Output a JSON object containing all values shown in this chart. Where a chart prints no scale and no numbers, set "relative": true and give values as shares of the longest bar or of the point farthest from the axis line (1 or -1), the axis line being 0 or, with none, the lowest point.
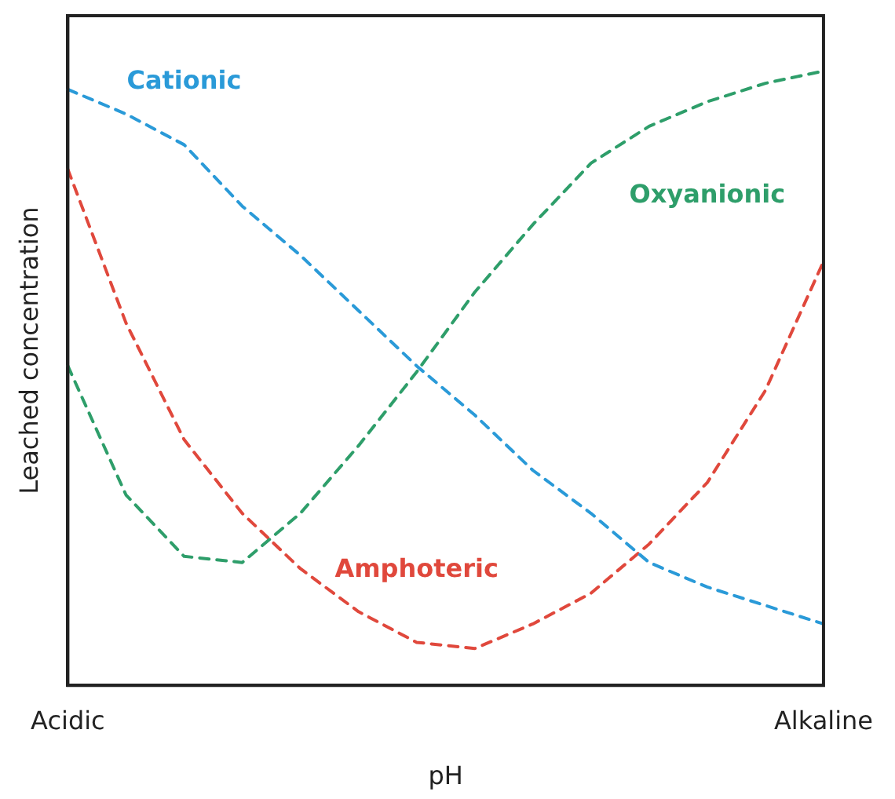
{
  "chart_data": {
    "type": "line",
    "relative": true,
    "xlabel": "pH",
    "ylabel": "Leached concentration",
    "categories": [
      "Acidic",
      null,
      null,
      null,
      null,
      null,
      null,
      null,
      null,
      null,
      null,
      null,
      null,
      "Alkaline"
    ],
    "series": [
      {
        "name": "Cationic",
        "color": "#2a9ad8",
        "values": [
          0.97,
          0.93,
          0.88,
          0.78,
          0.7,
          0.61,
          0.52,
          0.44,
          0.35,
          0.28,
          0.2,
          0.16,
          0.13,
          0.1
        ]
      },
      {
        "name": "Oxyanionic",
        "color": "#2e9e6a",
        "values": [
          0.52,
          0.31,
          0.21,
          0.2,
          0.28,
          0.39,
          0.51,
          0.64,
          0.75,
          0.85,
          0.91,
          0.95,
          0.98,
          1
        ]
      },
      {
        "name": "Amphoteric",
        "color": "#e0483c",
        "values": [
          0.84,
          0.59,
          0.4,
          0.28,
          0.19,
          0.12,
          0.07,
          0.06,
          0.1,
          0.15,
          0.23,
          0.33,
          0.48,
          0.69
        ]
      }
    ],
    "grid": false,
    "legend": false,
    "marker": "none",
    "line_style": "dashed"
  }
}
